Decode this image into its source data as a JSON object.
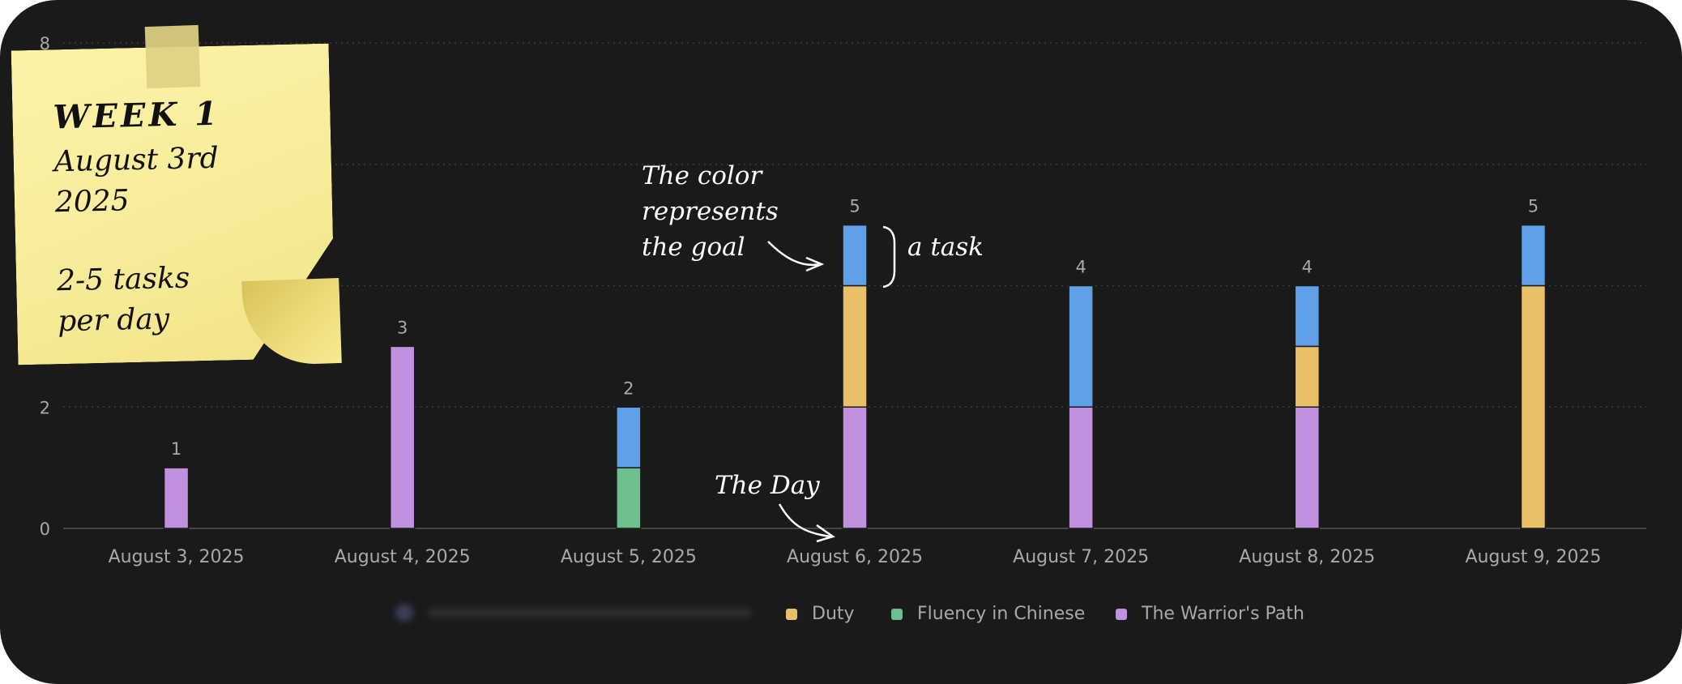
{
  "chart_data": {
    "type": "bar",
    "stacked": true,
    "categories": [
      "August 3, 2025",
      "August 4, 2025",
      "August 5, 2025",
      "August 6, 2025",
      "August 7, 2025",
      "August 8, 2025",
      "August 9, 2025"
    ],
    "series": [
      {
        "name": "The Warrior's Path",
        "color": "#c190de",
        "values": [
          1,
          3,
          0,
          2,
          2,
          2,
          0
        ]
      },
      {
        "name": "Fluency in Chinese",
        "color": "#6dbf8e",
        "values": [
          0,
          0,
          1,
          0,
          0,
          0,
          0
        ]
      },
      {
        "name": "Duty",
        "color": "#e8c06a",
        "values": [
          0,
          0,
          0,
          2,
          0,
          1,
          4
        ]
      },
      {
        "name": "",
        "color": "#5fa0e6",
        "values": [
          0,
          0,
          1,
          1,
          2,
          1,
          1
        ]
      }
    ],
    "totals": [
      "1",
      "3",
      "2",
      "5",
      "4",
      "4",
      "5"
    ],
    "y_ticks": [
      "0",
      "2",
      "8"
    ],
    "ylim": [
      0,
      8
    ],
    "grid": true,
    "legend_position": "bottom",
    "legend_entries": [
      "Duty",
      "Fluency in Chinese",
      "The Warrior's Path"
    ]
  },
  "sticky_note": {
    "title": "WEEK 1",
    "line1": "August 3rd",
    "line2": "2025",
    "line3": "2-5 tasks",
    "line4": "per day"
  },
  "annotations": {
    "color_line1": "The color",
    "color_line2": "represents",
    "color_line3": "the goal",
    "task": "a task",
    "day": "The Day"
  },
  "colors": {
    "background": "#1a1a1a",
    "text_muted": "#a9a9a9",
    "grid": "#3a3a3a",
    "note": "#f7ec9a"
  }
}
